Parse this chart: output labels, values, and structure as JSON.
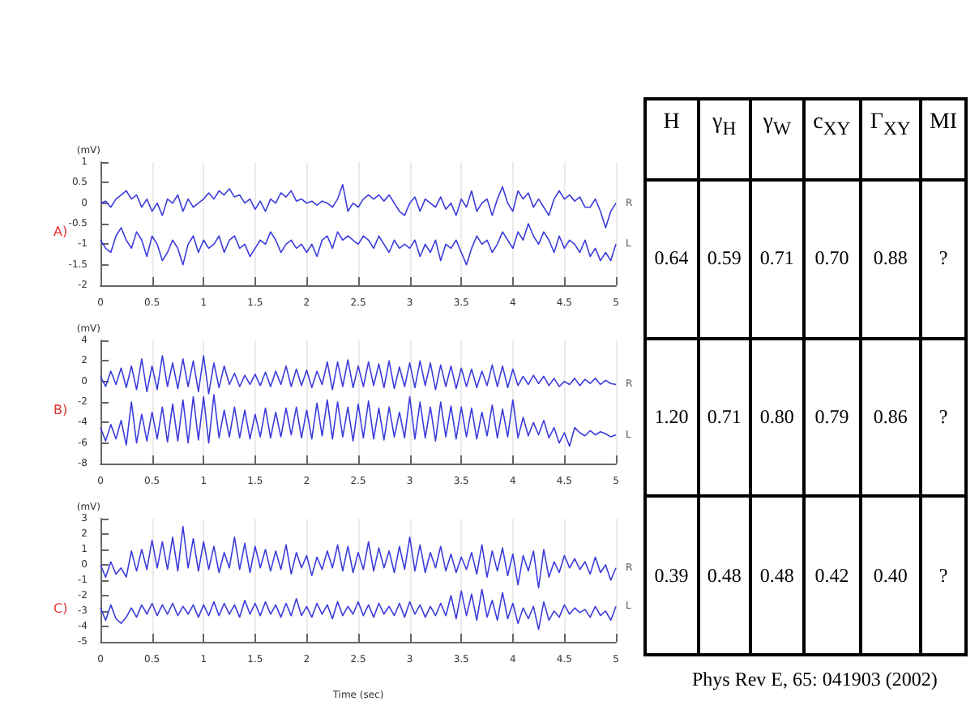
{
  "chart_data": [
    {
      "type": "line",
      "title": "A)",
      "ylabel": "(mV)",
      "grid": "x",
      "legend": false,
      "marker": "none",
      "line_style": "solid",
      "xlim": [
        0,
        5
      ],
      "xticks": [
        0,
        0.5,
        1,
        1.5,
        2,
        2.5,
        3,
        3.5,
        4,
        4.5,
        5
      ],
      "ylim": [
        -2,
        1
      ],
      "yticks": [
        -2,
        -1.5,
        -1,
        -0.5,
        0,
        0.5,
        1
      ],
      "x": [
        0,
        0.05,
        0.1,
        0.15,
        0.2,
        0.25,
        0.3,
        0.35,
        0.4,
        0.45,
        0.5,
        0.55,
        0.6,
        0.65,
        0.7,
        0.75,
        0.8,
        0.85,
        0.9,
        0.95,
        1,
        1.05,
        1.1,
        1.15,
        1.2,
        1.25,
        1.3,
        1.35,
        1.4,
        1.45,
        1.5,
        1.55,
        1.6,
        1.65,
        1.7,
        1.75,
        1.8,
        1.85,
        1.9,
        1.95,
        2,
        2.05,
        2.1,
        2.15,
        2.2,
        2.25,
        2.3,
        2.35,
        2.4,
        2.45,
        2.5,
        2.55,
        2.6,
        2.65,
        2.7,
        2.75,
        2.8,
        2.85,
        2.9,
        2.95,
        3,
        3.05,
        3.1,
        3.15,
        3.2,
        3.25,
        3.3,
        3.35,
        3.4,
        3.45,
        3.5,
        3.55,
        3.6,
        3.65,
        3.7,
        3.75,
        3.8,
        3.85,
        3.9,
        3.95,
        4,
        4.05,
        4.1,
        4.15,
        4.2,
        4.25,
        4.3,
        4.35,
        4.4,
        4.45,
        4.5,
        4.55,
        4.6,
        4.65,
        4.7,
        4.75,
        4.8,
        4.85,
        4.9,
        4.95,
        5
      ],
      "series": [
        {
          "name": "R",
          "color": "#3c3cdc",
          "values": [
            0,
            0.05,
            -0.1,
            0.1,
            0.2,
            0.3,
            0.1,
            0.2,
            -0.1,
            0.1,
            -0.2,
            0,
            -0.3,
            0.1,
            0,
            0.2,
            -0.2,
            0.1,
            -0.1,
            0,
            0.1,
            0.25,
            0.1,
            0.3,
            0.2,
            0.35,
            0.15,
            0.2,
            0,
            0.1,
            -0.15,
            0.05,
            -0.2,
            0.1,
            0,
            0.25,
            0.15,
            0.3,
            0.05,
            0.1,
            0,
            0.05,
            -0.05,
            0.05,
            0,
            -0.1,
            0.1,
            0.45,
            -0.2,
            0,
            -0.1,
            0.1,
            0.2,
            0.1,
            0.2,
            0.05,
            0.2,
            0,
            -0.2,
            -0.3,
            0,
            0.15,
            -0.2,
            0.1,
            0,
            -0.1,
            0.15,
            -0.15,
            0,
            -0.3,
            0.1,
            -0.1,
            0.3,
            -0.2,
            0,
            0.1,
            -0.3,
            0.1,
            0.4,
            0,
            -0.2,
            0.3,
            0.1,
            0.25,
            -0.1,
            0.1,
            -0.1,
            -0.3,
            0.1,
            0.3,
            0.1,
            0.2,
            0.05,
            0.15,
            -0.1,
            -0.1,
            0.1,
            -0.2,
            -0.6,
            -0.2,
            0
          ]
        },
        {
          "name": "L",
          "color": "#3c3cdc",
          "values": [
            -0.9,
            -1.1,
            -1.2,
            -0.8,
            -0.6,
            -0.9,
            -1.1,
            -0.7,
            -0.9,
            -1.3,
            -0.8,
            -1,
            -1.4,
            -1.2,
            -0.9,
            -1.1,
            -1.5,
            -1,
            -0.8,
            -1.2,
            -0.9,
            -1.1,
            -1,
            -0.8,
            -1.2,
            -0.9,
            -0.8,
            -1.1,
            -1,
            -1.3,
            -1.1,
            -0.9,
            -1,
            -0.7,
            -0.9,
            -1.2,
            -1,
            -0.9,
            -1.1,
            -1,
            -1.2,
            -1,
            -1.3,
            -0.9,
            -0.8,
            -1.1,
            -0.7,
            -0.9,
            -0.8,
            -0.9,
            -1,
            -0.8,
            -0.9,
            -1.1,
            -0.8,
            -1,
            -1.2,
            -0.9,
            -1.1,
            -1,
            -1.1,
            -0.9,
            -1.3,
            -1,
            -1.2,
            -0.9,
            -1.4,
            -1,
            -1.1,
            -0.9,
            -1.2,
            -1.5,
            -1.1,
            -0.8,
            -1,
            -0.9,
            -1.2,
            -1,
            -0.7,
            -0.9,
            -1.1,
            -0.7,
            -0.9,
            -0.5,
            -0.8,
            -1,
            -0.7,
            -0.9,
            -1.2,
            -0.8,
            -1.1,
            -0.9,
            -1,
            -1.2,
            -0.9,
            -1.3,
            -1.1,
            -1.4,
            -1.2,
            -1.4,
            -1
          ]
        }
      ]
    },
    {
      "type": "line",
      "title": "B)",
      "ylabel": "(mV)",
      "grid": "x",
      "legend": false,
      "marker": "none",
      "line_style": "solid",
      "xlim": [
        0,
        5
      ],
      "xticks": [
        0,
        0.5,
        1,
        1.5,
        2,
        2.5,
        3,
        3.5,
        4,
        4.5,
        5
      ],
      "ylim": [
        -8,
        4
      ],
      "yticks": [
        -8,
        -6,
        -4,
        -2,
        0,
        2,
        4
      ],
      "x": [
        0,
        0.05,
        0.1,
        0.15,
        0.2,
        0.25,
        0.3,
        0.35,
        0.4,
        0.45,
        0.5,
        0.55,
        0.6,
        0.65,
        0.7,
        0.75,
        0.8,
        0.85,
        0.9,
        0.95,
        1,
        1.05,
        1.1,
        1.15,
        1.2,
        1.25,
        1.3,
        1.35,
        1.4,
        1.45,
        1.5,
        1.55,
        1.6,
        1.65,
        1.7,
        1.75,
        1.8,
        1.85,
        1.9,
        1.95,
        2,
        2.05,
        2.1,
        2.15,
        2.2,
        2.25,
        2.3,
        2.35,
        2.4,
        2.45,
        2.5,
        2.55,
        2.6,
        2.65,
        2.7,
        2.75,
        2.8,
        2.85,
        2.9,
        2.95,
        3,
        3.05,
        3.1,
        3.15,
        3.2,
        3.25,
        3.3,
        3.35,
        3.4,
        3.45,
        3.5,
        3.55,
        3.6,
        3.65,
        3.7,
        3.75,
        3.8,
        3.85,
        3.9,
        3.95,
        4,
        4.05,
        4.1,
        4.15,
        4.2,
        4.25,
        4.3,
        4.35,
        4.4,
        4.45,
        4.5,
        4.55,
        4.6,
        4.65,
        4.7,
        4.75,
        4.8,
        4.85,
        4.9,
        4.95,
        5
      ],
      "series": [
        {
          "name": "R",
          "color": "#3c3cdc",
          "values": [
            0.5,
            -0.5,
            1,
            -0.3,
            1.3,
            -0.6,
            1.5,
            -0.8,
            2.2,
            -1,
            1.5,
            -0.8,
            2.5,
            -0.5,
            1.8,
            -0.7,
            2.2,
            -0.5,
            2,
            -1,
            2.5,
            -1.2,
            1.8,
            -0.6,
            1.5,
            -0.3,
            0.8,
            -0.5,
            0.6,
            -0.3,
            0.7,
            -0.4,
            0.9,
            -0.5,
            1,
            -0.3,
            1.5,
            -0.5,
            1.2,
            -0.4,
            1.1,
            -0.6,
            1,
            -0.3,
            1.9,
            -0.8,
            1.9,
            -0.5,
            2.1,
            -0.6,
            1.5,
            -0.5,
            1.9,
            -0.4,
            1.7,
            -0.6,
            2,
            -0.7,
            1.4,
            -0.5,
            1.8,
            -0.6,
            2,
            -0.4,
            1.8,
            -0.8,
            1.6,
            -0.5,
            1.5,
            -0.7,
            1.3,
            -0.5,
            1.2,
            -0.6,
            1,
            -0.4,
            1.6,
            -0.5,
            1.5,
            -0.6,
            1.2,
            -0.4,
            0.5,
            -0.3,
            0.6,
            -0.2,
            0.5,
            -0.4,
            0.3,
            -0.5,
            0,
            -0.3,
            0.3,
            -0.4,
            0.2,
            -0.2,
            0.3,
            -0.3,
            0.1,
            -0.2,
            -0.3
          ]
        },
        {
          "name": "L",
          "color": "#3c3cdc",
          "values": [
            -4.5,
            -5.8,
            -4.2,
            -5.6,
            -3.8,
            -6.2,
            -2,
            -6,
            -3.2,
            -5.8,
            -3,
            -5.6,
            -2.5,
            -5.9,
            -2.2,
            -5.8,
            -1.8,
            -6,
            -1.5,
            -5.7,
            -1.5,
            -6,
            -1.3,
            -5.5,
            -2.8,
            -5.4,
            -2.5,
            -5.5,
            -2.8,
            -5.6,
            -3.2,
            -5.4,
            -2.6,
            -5.5,
            -3,
            -5.4,
            -2.6,
            -5.2,
            -2.5,
            -5.5,
            -2.8,
            -5.6,
            -2.1,
            -5.3,
            -1.8,
            -5.6,
            -2,
            -5.4,
            -2.5,
            -5.8,
            -2.2,
            -5.5,
            -1.9,
            -5.6,
            -2.6,
            -5.7,
            -2.5,
            -5.4,
            -3,
            -5.5,
            -1.5,
            -5.6,
            -2,
            -5.5,
            -2.5,
            -5.8,
            -2,
            -5.4,
            -2.4,
            -5.6,
            -2.5,
            -5.4,
            -2.6,
            -5.6,
            -3,
            -5.3,
            -2.3,
            -5.5,
            -2.7,
            -5.4,
            -1.8,
            -5.5,
            -3.5,
            -5.3,
            -4,
            -5.2,
            -3.8,
            -5.5,
            -4.5,
            -6,
            -5,
            -6.3,
            -4.5,
            -5,
            -5.3,
            -4.8,
            -5.2,
            -4.9,
            -5.1,
            -5.4,
            -5.2
          ]
        }
      ]
    },
    {
      "type": "line",
      "title": "C)",
      "ylabel": "(mV)",
      "xlabel": "Time (sec)",
      "grid": "x",
      "legend": false,
      "marker": "none",
      "line_style": "solid",
      "xlim": [
        0,
        5
      ],
      "xticks": [
        0,
        0.5,
        1,
        1.5,
        2,
        2.5,
        3,
        3.5,
        4,
        4.5,
        5
      ],
      "ylim": [
        -5,
        3
      ],
      "yticks": [
        -5,
        -4,
        -3,
        -2,
        -1,
        0,
        1,
        2,
        3
      ],
      "x": [
        0,
        0.05,
        0.1,
        0.15,
        0.2,
        0.25,
        0.3,
        0.35,
        0.4,
        0.45,
        0.5,
        0.55,
        0.6,
        0.65,
        0.7,
        0.75,
        0.8,
        0.85,
        0.9,
        0.95,
        1,
        1.05,
        1.1,
        1.15,
        1.2,
        1.25,
        1.3,
        1.35,
        1.4,
        1.45,
        1.5,
        1.55,
        1.6,
        1.65,
        1.7,
        1.75,
        1.8,
        1.85,
        1.9,
        1.95,
        2,
        2.05,
        2.1,
        2.15,
        2.2,
        2.25,
        2.3,
        2.35,
        2.4,
        2.45,
        2.5,
        2.55,
        2.6,
        2.65,
        2.7,
        2.75,
        2.8,
        2.85,
        2.9,
        2.95,
        3,
        3.05,
        3.1,
        3.15,
        3.2,
        3.25,
        3.3,
        3.35,
        3.4,
        3.45,
        3.5,
        3.55,
        3.6,
        3.65,
        3.7,
        3.75,
        3.8,
        3.85,
        3.9,
        3.95,
        4,
        4.05,
        4.1,
        4.15,
        4.2,
        4.25,
        4.3,
        4.35,
        4.4,
        4.45,
        4.5,
        4.55,
        4.6,
        4.65,
        4.7,
        4.75,
        4.8,
        4.85,
        4.9,
        4.95,
        5
      ],
      "series": [
        {
          "name": "R",
          "color": "#3c3cdc",
          "values": [
            0,
            -0.8,
            0.2,
            -0.6,
            -0.2,
            -0.8,
            0.9,
            -0.4,
            1,
            -0.3,
            1.6,
            -0.2,
            1.5,
            -0.3,
            1.8,
            -0.4,
            2.5,
            -0.2,
            1.7,
            -0.4,
            1.5,
            -0.3,
            1.2,
            -0.5,
            0.8,
            -0.2,
            1.8,
            -0.3,
            1.4,
            -0.5,
            1.2,
            -0.2,
            1,
            -0.4,
            0.9,
            -0.3,
            1.3,
            -0.6,
            0.8,
            -0.2,
            0.6,
            -0.7,
            0.5,
            -0.3,
            0.9,
            -0.2,
            1.3,
            -0.4,
            1.2,
            -0.5,
            0.8,
            -0.3,
            1.5,
            -0.4,
            1.1,
            -0.2,
            0.9,
            -0.5,
            1.2,
            -0.3,
            1.8,
            -0.4,
            1.3,
            -0.5,
            0.8,
            -0.2,
            1.2,
            -0.4,
            0.7,
            -0.5,
            0.5,
            -0.3,
            0.8,
            -0.6,
            1.3,
            -0.8,
            0.9,
            -0.4,
            1.1,
            -0.7,
            0.7,
            -1.3,
            0.6,
            -0.4,
            0.9,
            -1.5,
            1,
            -0.8,
            0.2,
            -0.5,
            0.6,
            -0.2,
            0.4,
            -0.3,
            0.2,
            -0.6,
            0.5,
            -0.5,
            0,
            -1,
            -0.2
          ]
        },
        {
          "name": "L",
          "color": "#3c3cdc",
          "values": [
            -2.8,
            -3.6,
            -2.6,
            -3.5,
            -3.8,
            -3.4,
            -2.8,
            -3.4,
            -2.6,
            -3.2,
            -2.5,
            -3.3,
            -2.6,
            -3.2,
            -2.5,
            -3.3,
            -2.7,
            -3.2,
            -2.6,
            -3.4,
            -2.6,
            -3.3,
            -2.4,
            -3.3,
            -2.5,
            -3.2,
            -2.6,
            -3.4,
            -2.3,
            -3.2,
            -2.5,
            -3.3,
            -2.4,
            -3.2,
            -2.6,
            -3.4,
            -2.5,
            -3.3,
            -2.2,
            -3.3,
            -2.7,
            -3.4,
            -2.5,
            -3.2,
            -2.6,
            -3.5,
            -2.4,
            -3.3,
            -2.7,
            -3.2,
            -2.4,
            -3.3,
            -2.6,
            -3.4,
            -2.5,
            -3.2,
            -2.7,
            -3.3,
            -2.5,
            -3.4,
            -2.4,
            -3.2,
            -2.6,
            -3.4,
            -2.7,
            -3.3,
            -2.5,
            -3.3,
            -2,
            -3.5,
            -1.7,
            -3.3,
            -1.9,
            -3.6,
            -1.6,
            -3.4,
            -2.3,
            -3.6,
            -1.8,
            -3.5,
            -2.5,
            -3.8,
            -2.8,
            -3.5,
            -2.7,
            -4.2,
            -2.4,
            -3.6,
            -3,
            -3.4,
            -2.6,
            -3.2,
            -2.8,
            -3.1,
            -2.9,
            -3.4,
            -2.7,
            -3.3,
            -3,
            -3.6,
            -2.7
          ]
        }
      ]
    },
    {
      "type": "other",
      "categories": [
        "H",
        "γ$_{H}$",
        "γ$_{W}$",
        "c$_{XY}$",
        "Γ$_{XY}$",
        "MI"
      ],
      "cell_labels": [
        [
          "0.64",
          "0.59",
          "0.71",
          "0.70",
          "0.88",
          "?"
        ],
        [
          "1.20",
          "0.71",
          "0.80",
          "0.79",
          "0.86",
          "?"
        ],
        [
          "0.39",
          "0.48",
          "0.48",
          "0.42",
          "0.40",
          "?"
        ]
      ],
      "annotations": [
        "Phys Rev E, 65: 041903 (2002)"
      ]
    }
  ]
}
